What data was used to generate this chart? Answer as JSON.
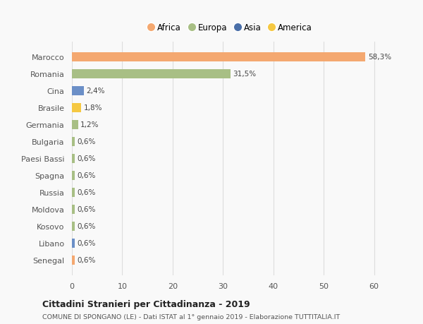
{
  "categories": [
    "Marocco",
    "Romania",
    "Cina",
    "Brasile",
    "Germania",
    "Bulgaria",
    "Paesi Bassi",
    "Spagna",
    "Russia",
    "Moldova",
    "Kosovo",
    "Libano",
    "Senegal"
  ],
  "values": [
    58.3,
    31.5,
    2.4,
    1.8,
    1.2,
    0.6,
    0.6,
    0.6,
    0.6,
    0.6,
    0.6,
    0.6,
    0.6
  ],
  "labels": [
    "58,3%",
    "31,5%",
    "2,4%",
    "1,8%",
    "1,2%",
    "0,6%",
    "0,6%",
    "0,6%",
    "0,6%",
    "0,6%",
    "0,6%",
    "0,6%",
    "0,6%"
  ],
  "colors": [
    "#f4a870",
    "#a8bf85",
    "#6b8fc7",
    "#f5c842",
    "#a8bf85",
    "#a8bf85",
    "#a8bf85",
    "#a8bf85",
    "#a8bf85",
    "#a8bf85",
    "#a8bf85",
    "#6b8fc7",
    "#f4a870"
  ],
  "legend": [
    {
      "label": "Africa",
      "color": "#f4a870"
    },
    {
      "label": "Europa",
      "color": "#a8bf85"
    },
    {
      "label": "Asia",
      "color": "#4a6fa8"
    },
    {
      "label": "America",
      "color": "#f5c842"
    }
  ],
  "title": "Cittadini Stranieri per Cittadinanza - 2019",
  "subtitle": "COMUNE DI SPONGANO (LE) - Dati ISTAT al 1° gennaio 2019 - Elaborazione TUTTITALIA.IT",
  "xlim": [
    0,
    63
  ],
  "xticks": [
    0,
    10,
    20,
    30,
    40,
    50,
    60
  ],
  "background_color": "#f9f9f9",
  "bar_height": 0.55,
  "grid_color": "#dddddd"
}
